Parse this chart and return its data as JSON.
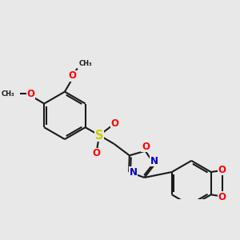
{
  "background_color": "#e8e8e8",
  "bond_color": "#1a1a1a",
  "bond_width": 1.5,
  "atom_colors": {
    "O": "#ff0000",
    "N": "#0000cc",
    "S": "#cccc00",
    "C": "#1a1a1a"
  },
  "font_size": 7.5,
  "dbo": 0.07
}
